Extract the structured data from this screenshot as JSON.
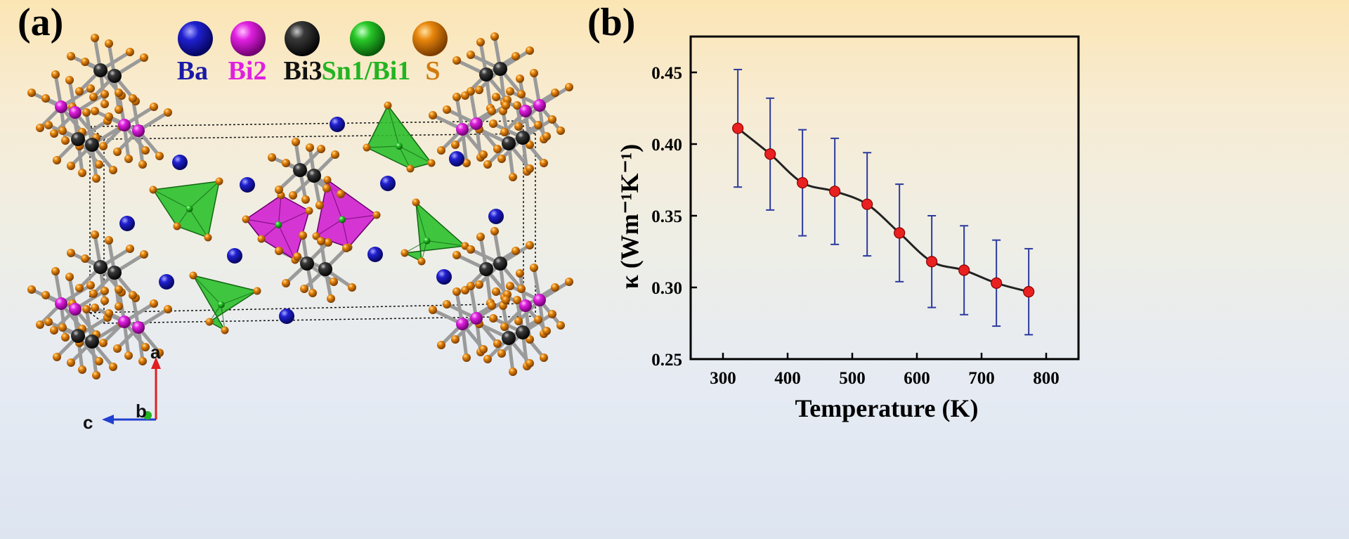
{
  "panel_a": {
    "label": "(a)",
    "legend": [
      {
        "label": "Ba",
        "color": "#1a1aa8"
      },
      {
        "label": "Bi2",
        "color": "#e020e0"
      },
      {
        "label": "Bi3",
        "color": "#1a1a1a"
      },
      {
        "label": "Sn1/Bi1",
        "color": "#22b422"
      },
      {
        "label": "S",
        "color": "#d27a10"
      }
    ],
    "axes": {
      "a": "a",
      "b": "b",
      "c": "c"
    }
  },
  "panel_b": {
    "label": "(b)"
  },
  "chart_data": {
    "type": "line",
    "xlabel": "Temperature (K)",
    "ylabel": "κ (Wm⁻¹K⁻¹)",
    "xlim": [
      250,
      850
    ],
    "ylim": [
      0.25,
      0.475
    ],
    "xticks": [
      300,
      400,
      500,
      600,
      700,
      800
    ],
    "yticks": [
      0.25,
      0.3,
      0.35,
      0.4,
      0.45
    ],
    "x": [
      323,
      373,
      423,
      473,
      523,
      573,
      623,
      673,
      723,
      773
    ],
    "series": [
      {
        "values": [
          0.411,
          0.393,
          0.373,
          0.367,
          0.358,
          0.338,
          0.318,
          0.312,
          0.303,
          0.297
        ],
        "error": [
          0.041,
          0.039,
          0.037,
          0.037,
          0.036,
          0.034,
          0.032,
          0.031,
          0.03,
          0.03
        ],
        "color": "#e82020",
        "error_color": "#2b3a9c",
        "line_color": "#222222"
      }
    ],
    "grid": false
  }
}
